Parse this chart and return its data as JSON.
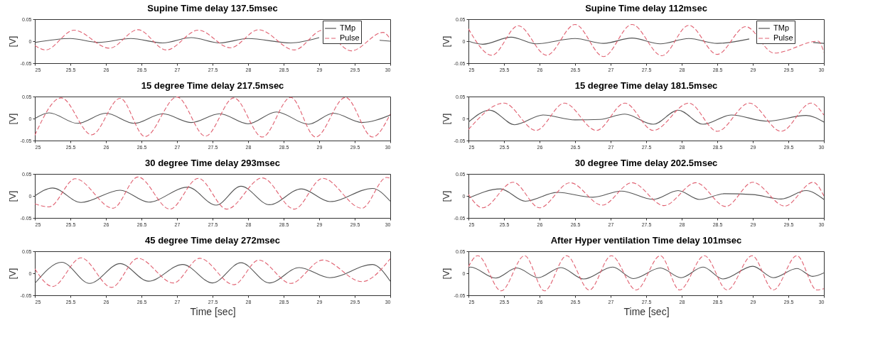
{
  "chart_data": [
    {
      "type": "line",
      "title": "Supine   Time delay 137.5msec",
      "ylabel": "[V]",
      "xlim": [
        25,
        30
      ],
      "xticks": [
        25,
        25.5,
        26,
        26.5,
        27,
        27.5,
        28,
        28.5,
        29,
        29.5,
        30
      ],
      "ylim": [
        -0.05,
        0.05
      ],
      "yticks": [
        -0.05,
        0,
        0.05
      ],
      "legend": "top right",
      "series": [
        {
          "name": "TMp",
          "color": "#555555",
          "line_style": "solid",
          "x": [
            25,
            25.5,
            25.9,
            26.35,
            26.8,
            27.2,
            27.6,
            28.0,
            28.6,
            29.0,
            29.5,
            29.85,
            30
          ],
          "values": [
            -0.003,
            0.006,
            -0.003,
            0.006,
            -0.004,
            0.008,
            -0.004,
            0.006,
            -0.004,
            0.008,
            null,
            0.002,
            0
          ]
        },
        {
          "name": "Pulse",
          "color": "#e06070",
          "line_style": "dashed",
          "x": [
            25,
            25.15,
            25.55,
            26.05,
            26.45,
            26.85,
            27.3,
            27.75,
            28.15,
            28.65,
            29.05,
            29.45,
            29.9,
            30
          ],
          "values": [
            -0.01,
            -0.02,
            0.025,
            -0.016,
            0.026,
            -0.02,
            0.025,
            -0.015,
            0.026,
            -0.02,
            0.025,
            -0.022,
            0.02,
            0.005
          ]
        }
      ]
    },
    {
      "type": "line",
      "title": "Supine   Time delay 112msec",
      "ylabel": "[V]",
      "xlim": [
        25,
        30
      ],
      "xticks": [
        25,
        25.5,
        26,
        26.5,
        27,
        27.5,
        28,
        28.5,
        29,
        29.5,
        30
      ],
      "ylim": [
        -0.05,
        0.05
      ],
      "yticks": [
        -0.05,
        0,
        0.05
      ],
      "legend": "top right",
      "series": [
        {
          "name": "TMp",
          "color": "#555555",
          "line_style": "solid",
          "x": [
            25,
            25.2,
            25.6,
            25.95,
            26.5,
            26.9,
            27.3,
            27.7,
            28.1,
            28.5,
            28.95,
            29.5,
            29.85,
            30
          ],
          "values": [
            0,
            -0.007,
            0.009,
            -0.006,
            0.006,
            -0.005,
            0.007,
            -0.006,
            0.006,
            -0.005,
            0.005,
            null,
            -0.003,
            -0.005
          ]
        },
        {
          "name": "Pulse",
          "color": "#e06070",
          "line_style": "dashed",
          "x": [
            25,
            25.33,
            25.7,
            26.1,
            26.5,
            26.9,
            27.3,
            27.72,
            28.1,
            28.5,
            28.9,
            29.3,
            29.92,
            30
          ],
          "values": [
            0.028,
            -0.032,
            0.035,
            -0.032,
            0.038,
            -0.035,
            0.038,
            -0.033,
            0.036,
            -0.03,
            0.033,
            -0.027,
            0.0,
            -0.025
          ]
        }
      ]
    },
    {
      "type": "line",
      "title": "15 degree  Time delay 217.5msec",
      "ylabel": "[V]",
      "xlim": [
        25,
        30
      ],
      "xticks": [
        25,
        25.5,
        26,
        26.5,
        27,
        27.5,
        28,
        28.5,
        29,
        29.5,
        30
      ],
      "ylim": [
        -0.05,
        0.05
      ],
      "yticks": [
        -0.05,
        0,
        0.05
      ],
      "series": [
        {
          "color": "#555555",
          "line_style": "solid",
          "x": [
            25,
            25.2,
            25.6,
            26.0,
            26.4,
            26.8,
            27.2,
            27.6,
            28.0,
            28.4,
            28.85,
            29.2,
            29.6,
            30
          ],
          "values": [
            0,
            0.013,
            -0.011,
            0.012,
            -0.011,
            0.011,
            -0.009,
            0.011,
            -0.012,
            0.015,
            -0.013,
            0.012,
            -0.009,
            0.008
          ]
        },
        {
          "color": "#e06070",
          "line_style": "dashed",
          "x": [
            25,
            25.37,
            25.8,
            26.2,
            26.55,
            27.0,
            27.4,
            27.8,
            28.2,
            28.6,
            28.95,
            29.37,
            29.75,
            30
          ],
          "values": [
            -0.038,
            0.047,
            -0.037,
            0.046,
            -0.041,
            0.049,
            -0.04,
            0.047,
            -0.042,
            0.048,
            -0.042,
            0.048,
            -0.042,
            0.01
          ]
        }
      ]
    },
    {
      "type": "line",
      "title": "15 degree Time delay 181.5msec",
      "ylabel": "[V]",
      "xlim": [
        25,
        30
      ],
      "xticks": [
        25,
        25.5,
        26,
        26.5,
        27,
        27.5,
        28,
        28.5,
        29,
        29.5,
        30
      ],
      "ylim": [
        -0.05,
        0.05
      ],
      "yticks": [
        -0.05,
        0,
        0.05
      ],
      "series": [
        {
          "color": "#555555",
          "line_style": "solid",
          "x": [
            25,
            25.3,
            25.65,
            26.05,
            26.5,
            26.85,
            27.2,
            27.6,
            27.95,
            28.3,
            28.7,
            29.2,
            29.75,
            30
          ],
          "values": [
            -0.008,
            0.019,
            -0.014,
            0.008,
            -0.003,
            -0.002,
            0.01,
            -0.013,
            0.019,
            -0.013,
            0.008,
            -0.006,
            0.007,
            -0.008
          ]
        },
        {
          "color": "#e06070",
          "line_style": "dashed",
          "x": [
            25,
            25.5,
            25.95,
            26.35,
            26.8,
            27.2,
            27.6,
            28.1,
            28.5,
            28.95,
            29.4,
            29.82,
            30
          ],
          "values": [
            -0.025,
            0.035,
            -0.027,
            0.035,
            -0.027,
            0.035,
            -0.027,
            0.035,
            -0.029,
            0.035,
            -0.029,
            0.035,
            0.008
          ]
        }
      ]
    },
    {
      "type": "line",
      "title": "30 degree  Time delay 293msec",
      "ylabel": "[V]",
      "xlim": [
        25,
        30
      ],
      "xticks": [
        25,
        25.5,
        26,
        26.5,
        27,
        27.5,
        28,
        28.5,
        29,
        29.5,
        30
      ],
      "ylim": [
        -0.05,
        0.05
      ],
      "yticks": [
        -0.05,
        0,
        0.05
      ],
      "series": [
        {
          "color": "#555555",
          "line_style": "solid",
          "x": [
            25,
            25.25,
            25.65,
            26.2,
            26.6,
            27.15,
            27.55,
            27.9,
            28.3,
            28.75,
            29.15,
            29.75,
            30
          ],
          "values": [
            0,
            0.018,
            -0.015,
            0.013,
            -0.014,
            0.02,
            -0.021,
            0.022,
            -0.02,
            0.016,
            -0.013,
            0.017,
            -0.012
          ]
        },
        {
          "color": "#e06070",
          "line_style": "dashed",
          "x": [
            25,
            25.2,
            25.57,
            26.1,
            26.45,
            26.9,
            27.3,
            27.7,
            28.2,
            28.65,
            29.05,
            29.6,
            29.95,
            30
          ],
          "values": [
            -0.018,
            -0.025,
            0.039,
            -0.028,
            0.043,
            -0.03,
            0.04,
            -0.03,
            0.041,
            -0.03,
            0.04,
            -0.028,
            0.042,
            0.04
          ]
        }
      ]
    },
    {
      "type": "line",
      "title": "30 degree  Time delay 202.5msec",
      "ylabel": "[V]",
      "xlim": [
        25,
        30
      ],
      "xticks": [
        25,
        25.5,
        26,
        26.5,
        27,
        27.5,
        28,
        28.5,
        29,
        29.5,
        30
      ],
      "ylim": [
        -0.05,
        0.05
      ],
      "yticks": [
        -0.05,
        0,
        0.05
      ],
      "series": [
        {
          "color": "#555555",
          "line_style": "solid",
          "x": [
            25,
            25.45,
            25.8,
            26.25,
            26.75,
            27.15,
            27.6,
            27.95,
            28.25,
            28.6,
            29.0,
            29.4,
            29.75,
            30
          ],
          "values": [
            -0.005,
            0.016,
            -0.012,
            0.008,
            -0.003,
            0.011,
            -0.008,
            0.012,
            -0.008,
            0.005,
            0.003,
            -0.007,
            0.012,
            -0.008
          ]
        },
        {
          "color": "#e06070",
          "line_style": "dashed",
          "x": [
            25,
            25.2,
            25.63,
            26.0,
            26.43,
            26.88,
            27.3,
            27.75,
            28.2,
            28.62,
            29.0,
            29.45,
            29.85,
            30
          ],
          "values": [
            0.003,
            -0.027,
            0.031,
            -0.027,
            0.03,
            -0.021,
            0.03,
            -0.022,
            0.03,
            -0.024,
            0.031,
            -0.023,
            0.031,
            0
          ]
        }
      ]
    },
    {
      "type": "line",
      "title": "45 degree  Time delay 272msec",
      "xlabel": "Time [sec]",
      "ylabel": "[V]",
      "xlim": [
        25,
        30
      ],
      "xticks": [
        25,
        25.5,
        26,
        26.5,
        27,
        27.5,
        28,
        28.5,
        29,
        29.5,
        30
      ],
      "ylim": [
        -0.05,
        0.05
      ],
      "yticks": [
        -0.05,
        0,
        0.05
      ],
      "series": [
        {
          "color": "#555555",
          "line_style": "solid",
          "x": [
            25,
            25.38,
            25.77,
            26.2,
            26.6,
            27.08,
            27.5,
            27.9,
            28.3,
            28.72,
            29.15,
            29.75,
            30
          ],
          "values": [
            -0.023,
            0.025,
            -0.023,
            0.022,
            -0.018,
            0.02,
            -0.022,
            0.024,
            -0.022,
            0.013,
            -0.01,
            0.02,
            -0.018
          ]
        },
        {
          "color": "#e06070",
          "line_style": "dashed",
          "x": [
            25,
            25.25,
            25.65,
            26.08,
            26.45,
            26.95,
            27.32,
            27.8,
            28.15,
            28.6,
            29.05,
            29.6,
            30
          ],
          "values": [
            0.01,
            -0.03,
            0.035,
            -0.032,
            0.034,
            -0.022,
            0.034,
            -0.026,
            0.03,
            -0.023,
            0.03,
            -0.019,
            0.033
          ]
        }
      ]
    },
    {
      "type": "line",
      "title": "After Hyper ventilation  Time delay 101msec",
      "xlabel": "Time [sec]",
      "ylabel": "[V]",
      "xlim": [
        25,
        30
      ],
      "xticks": [
        25,
        25.5,
        26,
        26.5,
        27,
        27.5,
        28,
        28.5,
        29,
        29.5,
        30
      ],
      "ylim": [
        -0.05,
        0.05
      ],
      "yticks": [
        -0.05,
        0,
        0.05
      ],
      "series": [
        {
          "color": "#555555",
          "line_style": "solid",
          "x": [
            25,
            25.03,
            25.38,
            25.68,
            25.98,
            26.3,
            26.62,
            27.03,
            27.32,
            27.7,
            27.99,
            28.3,
            28.58,
            29.0,
            29.29,
            29.62,
            29.84,
            30
          ],
          "values": [
            0.013,
            0.014,
            -0.011,
            0.012,
            -0.01,
            0.013,
            -0.013,
            0.014,
            -0.012,
            0.012,
            -0.01,
            0.014,
            -0.013,
            0.016,
            -0.01,
            0.011,
            -0.007,
            0.001
          ]
        },
        {
          "color": "#e06070",
          "line_style": "dashed",
          "x": [
            25,
            25.13,
            25.46,
            25.79,
            26.07,
            26.38,
            26.7,
            27.01,
            27.36,
            27.7,
            27.97,
            28.32,
            28.64,
            28.99,
            29.29,
            29.62,
            29.9,
            30
          ],
          "values": [
            0.015,
            0.04,
            -0.04,
            0.04,
            -0.04,
            0.04,
            -0.038,
            0.04,
            -0.038,
            0.04,
            -0.038,
            0.04,
            -0.038,
            0.04,
            -0.038,
            0.04,
            -0.038,
            -0.035
          ]
        }
      ]
    }
  ]
}
